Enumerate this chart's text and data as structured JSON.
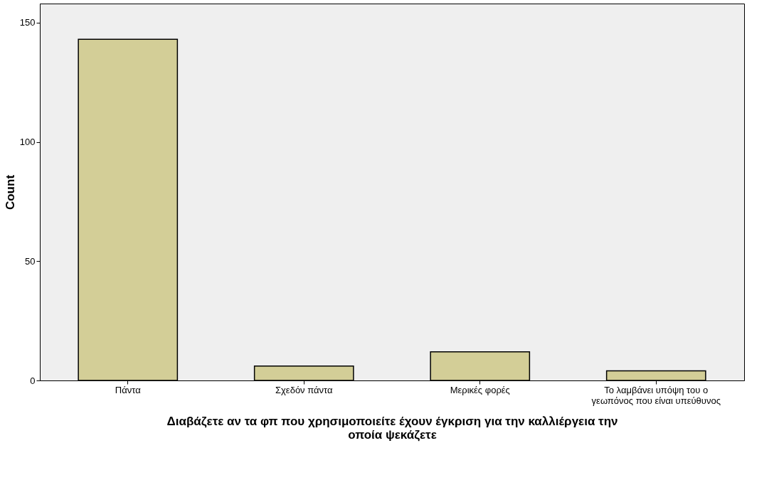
{
  "chart_data": {
    "type": "bar",
    "categories": [
      "Πάντα",
      "Σχεδόν πάντα",
      "Μερικές φορές",
      "Το λαμβάνει υπόψη του ο γεωπόνος που είναι υπεύθυνος"
    ],
    "values": [
      143,
      6,
      12,
      4
    ],
    "color": "#d3ce97",
    "ylim": [
      0,
      158
    ],
    "yticks": [
      0,
      50,
      100,
      150
    ],
    "ylabel": "Count",
    "xlabel": "Διαβάζετε αν τα φπ που χρησιμοποιείτε έχουν έγκριση για την καλλιέργεια την οποία ψεκάζετε",
    "grid": false
  }
}
